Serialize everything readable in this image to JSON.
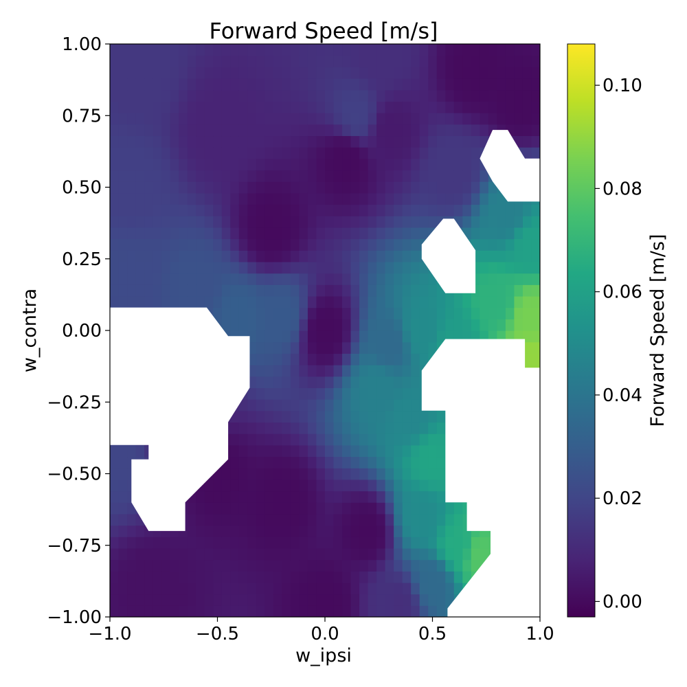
{
  "chart_data": {
    "type": "heatmap",
    "title": "Forward Speed [m/s]",
    "xlabel": "w_ipsi",
    "ylabel": "w_contra",
    "xlim": [
      -1.0,
      1.0
    ],
    "ylim": [
      -1.0,
      1.0
    ],
    "x_ticks": [
      -1.0,
      -0.5,
      0.0,
      0.5,
      1.0
    ],
    "x_tick_labels": [
      "−1.0",
      "−0.5",
      "0.0",
      "0.5",
      "1.0"
    ],
    "y_ticks": [
      1.0,
      0.75,
      0.5,
      0.25,
      0.0,
      -0.25,
      -0.5,
      -0.75,
      -1.0
    ],
    "y_tick_labels": [
      "1.00",
      "0.75",
      "0.50",
      "0.25",
      "0.00",
      "−0.25",
      "−0.50",
      "−0.75",
      "−1.00"
    ],
    "grid": false,
    "colormap": "viridis",
    "colorbar": {
      "label": "Forward Speed [m/s]",
      "vmin": -0.003,
      "vmax": 0.108,
      "ticks": [
        0.0,
        0.02,
        0.04,
        0.06,
        0.08,
        0.1
      ],
      "tick_labels": [
        "0.00",
        "0.02",
        "0.04",
        "0.06",
        "0.08",
        "0.10"
      ]
    },
    "field_anchors": [
      {
        "x": -0.85,
        "y": 0.9,
        "value": 0.015
      },
      {
        "x": -0.9,
        "y": 0.5,
        "value": 0.018
      },
      {
        "x": -0.9,
        "y": 0.2,
        "value": 0.022
      },
      {
        "x": -0.6,
        "y": 0.15,
        "value": 0.025
      },
      {
        "x": -0.4,
        "y": 0.05,
        "value": 0.03
      },
      {
        "x": -0.2,
        "y": 0.05,
        "value": 0.028
      },
      {
        "x": -0.5,
        "y": 0.7,
        "value": 0.008
      },
      {
        "x": -0.25,
        "y": 0.35,
        "value": 0.0
      },
      {
        "x": 0.1,
        "y": 0.6,
        "value": 0.0
      },
      {
        "x": 0.0,
        "y": 0.0,
        "value": 0.0
      },
      {
        "x": 0.25,
        "y": 0.95,
        "value": 0.012
      },
      {
        "x": 0.15,
        "y": 0.75,
        "value": 0.018
      },
      {
        "x": 0.3,
        "y": 0.7,
        "value": 0.005
      },
      {
        "x": 0.7,
        "y": 0.9,
        "value": 0.0
      },
      {
        "x": 0.9,
        "y": 0.8,
        "value": 0.0
      },
      {
        "x": 0.6,
        "y": 0.55,
        "value": 0.015
      },
      {
        "x": 0.85,
        "y": 0.4,
        "value": 0.045
      },
      {
        "x": 0.95,
        "y": 0.3,
        "value": 0.06
      },
      {
        "x": 0.8,
        "y": 0.1,
        "value": 0.068
      },
      {
        "x": 0.95,
        "y": 0.05,
        "value": 0.085
      },
      {
        "x": 0.95,
        "y": -0.1,
        "value": 0.09
      },
      {
        "x": 0.45,
        "y": 0.0,
        "value": 0.05
      },
      {
        "x": 0.6,
        "y": -0.05,
        "value": 0.058
      },
      {
        "x": 0.3,
        "y": -0.05,
        "value": 0.035
      },
      {
        "x": 0.25,
        "y": -0.2,
        "value": 0.045
      },
      {
        "x": 0.4,
        "y": -0.3,
        "value": 0.048
      },
      {
        "x": 0.5,
        "y": -0.45,
        "value": 0.062
      },
      {
        "x": 0.45,
        "y": -0.65,
        "value": 0.05
      },
      {
        "x": 0.62,
        "y": -0.75,
        "value": 0.065
      },
      {
        "x": 0.72,
        "y": -0.78,
        "value": 0.078
      },
      {
        "x": 0.5,
        "y": -0.88,
        "value": 0.035
      },
      {
        "x": 0.35,
        "y": -0.95,
        "value": 0.012
      },
      {
        "x": 0.2,
        "y": -0.7,
        "value": 0.0
      },
      {
        "x": -0.2,
        "y": -0.6,
        "value": 0.0
      },
      {
        "x": -0.5,
        "y": -0.5,
        "value": 0.0
      },
      {
        "x": -0.8,
        "y": -0.9,
        "value": 0.002
      },
      {
        "x": -0.95,
        "y": -0.45,
        "value": 0.02
      },
      {
        "x": -0.58,
        "y": -0.23,
        "value": 0.01
      },
      {
        "x": -0.73,
        "y": -0.32,
        "value": 0.008
      },
      {
        "x": 0.0,
        "y": -0.95,
        "value": 0.0
      }
    ],
    "missing_regions": [
      [
        [
          -1.0,
          0.08
        ],
        [
          -0.55,
          0.08
        ],
        [
          -0.45,
          -0.02
        ],
        [
          -0.35,
          -0.02
        ],
        [
          -0.35,
          -0.2
        ],
        [
          -0.45,
          -0.32
        ],
        [
          -0.45,
          -0.45
        ],
        [
          -0.65,
          -0.6
        ],
        [
          -0.65,
          -0.7
        ],
        [
          -0.82,
          -0.7
        ],
        [
          -0.9,
          -0.6
        ],
        [
          -0.9,
          -0.45
        ],
        [
          -0.82,
          -0.45
        ],
        [
          -0.82,
          -0.4
        ],
        [
          -1.0,
          -0.4
        ]
      ],
      [
        [
          0.78,
          0.7
        ],
        [
          0.85,
          0.7
        ],
        [
          0.93,
          0.6
        ],
        [
          1.0,
          0.6
        ],
        [
          1.0,
          0.45
        ],
        [
          0.85,
          0.45
        ],
        [
          0.78,
          0.52
        ],
        [
          0.72,
          0.6
        ]
      ],
      [
        [
          0.55,
          0.39
        ],
        [
          0.6,
          0.39
        ],
        [
          0.7,
          0.28
        ],
        [
          0.7,
          0.13
        ],
        [
          0.56,
          0.13
        ],
        [
          0.45,
          0.25
        ],
        [
          0.45,
          0.3
        ]
      ],
      [
        [
          0.56,
          -0.03
        ],
        [
          0.93,
          -0.03
        ],
        [
          0.93,
          -0.13
        ],
        [
          1.0,
          -0.13
        ],
        [
          1.0,
          -1.0
        ],
        [
          0.57,
          -1.0
        ],
        [
          0.57,
          -0.97
        ],
        [
          0.77,
          -0.78
        ],
        [
          0.77,
          -0.7
        ],
        [
          0.66,
          -0.7
        ],
        [
          0.66,
          -0.6
        ],
        [
          0.56,
          -0.6
        ],
        [
          0.56,
          -0.28
        ],
        [
          0.45,
          -0.28
        ],
        [
          0.45,
          -0.14
        ]
      ]
    ]
  }
}
